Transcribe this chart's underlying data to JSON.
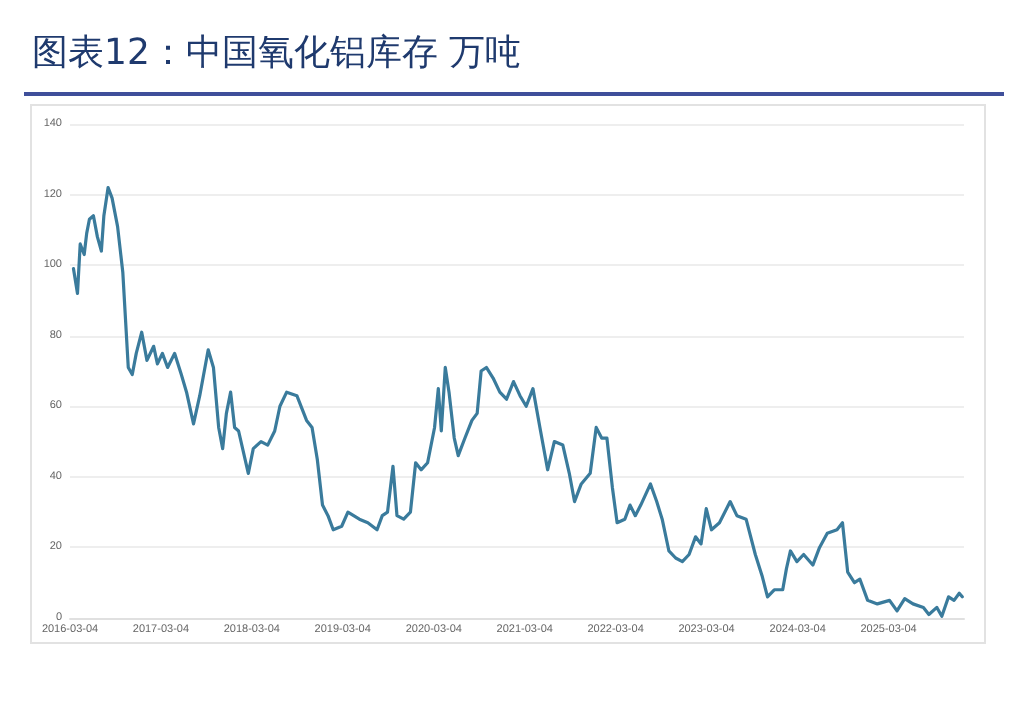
{
  "chart_data": {
    "type": "line",
    "title": "图表12：中国氧化铝库存 万吨",
    "x": [
      "2016-03-18",
      "2016-04-03",
      "2016-04-14",
      "2016-04-30",
      "2016-05-10",
      "2016-05-21",
      "2016-06-06",
      "2016-06-22",
      "2016-07-08",
      "2016-07-18",
      "2016-08-04",
      "2016-08-20",
      "2016-09-11",
      "2016-10-02",
      "2016-10-24",
      "2016-11-09",
      "2016-11-25",
      "2016-12-17",
      "2017-01-07",
      "2017-02-03",
      "2017-02-18",
      "2017-03-10",
      "2017-03-31",
      "2017-04-28",
      "2017-05-25",
      "2017-06-15",
      "2017-07-13",
      "2017-08-07",
      "2017-09-10",
      "2017-10-01",
      "2017-10-22",
      "2017-11-07",
      "2017-11-22",
      "2017-12-09",
      "2017-12-25",
      "2018-01-10",
      "2018-02-18",
      "2018-03-10",
      "2018-04-10",
      "2018-05-07",
      "2018-06-04",
      "2018-06-25",
      "2018-07-22",
      "2018-09-01",
      "2018-10-10",
      "2018-11-01",
      "2018-11-22",
      "2018-12-13",
      "2019-01-04",
      "2019-01-25",
      "2019-02-28",
      "2019-03-25",
      "2019-05-10",
      "2019-06-13",
      "2019-07-20",
      "2019-08-10",
      "2019-08-31",
      "2019-09-22",
      "2019-10-08",
      "2019-11-04",
      "2019-12-01",
      "2019-12-22",
      "2020-01-13",
      "2020-02-08",
      "2020-03-07",
      "2020-03-22",
      "2020-04-03",
      "2020-04-19",
      "2020-05-04",
      "2020-05-25",
      "2020-06-10",
      "2020-07-07",
      "2020-08-04",
      "2020-08-25",
      "2020-09-10",
      "2020-10-01",
      "2020-10-28",
      "2020-11-24",
      "2020-12-21",
      "2021-01-18",
      "2021-02-13",
      "2021-03-10",
      "2021-04-06",
      "2021-05-04",
      "2021-06-04",
      "2021-07-01",
      "2021-08-04",
      "2021-08-30",
      "2021-09-20",
      "2021-10-17",
      "2021-11-22",
      "2021-12-16",
      "2022-01-07",
      "2022-01-28",
      "2022-02-19",
      "2022-03-10",
      "2022-04-10",
      "2022-05-01",
      "2022-05-22",
      "2022-06-13",
      "2022-07-22",
      "2022-08-16",
      "2022-09-07",
      "2022-10-04",
      "2022-10-31",
      "2022-11-27",
      "2022-12-24",
      "2023-01-19",
      "2023-02-10",
      "2023-03-03",
      "2023-03-24",
      "2023-04-25",
      "2023-06-07",
      "2023-07-04",
      "2023-08-10",
      "2023-09-16",
      "2023-10-13",
      "2023-11-04",
      "2023-12-01",
      "2024-01-04",
      "2024-01-19",
      "2024-02-04",
      "2024-03-01",
      "2024-03-28",
      "2024-05-04",
      "2024-05-31",
      "2024-07-01",
      "2024-08-09",
      "2024-08-31",
      "2024-09-21",
      "2024-10-18",
      "2024-11-09",
      "2024-12-10",
      "2025-01-18",
      "2025-03-08",
      "2025-04-07",
      "2025-05-08",
      "2025-06-10",
      "2025-07-22",
      "2025-08-13",
      "2025-09-14",
      "2025-10-04",
      "2025-10-31",
      "2025-11-22",
      "2025-12-13",
      "2025-12-25"
    ],
    "series": [
      {
        "color": "#3a7b9c",
        "values": [
          99,
          92,
          106,
          103,
          109,
          113,
          114,
          108,
          104,
          114,
          122,
          119,
          111,
          98,
          71,
          69,
          75,
          81,
          73,
          77,
          72,
          75,
          71,
          75,
          69,
          64,
          55,
          63,
          76,
          71,
          54,
          48,
          58,
          64,
          54,
          53,
          41,
          48,
          50,
          49,
          53,
          60,
          64,
          63,
          56,
          54,
          45,
          32,
          29,
          25,
          26,
          30,
          28,
          27,
          25,
          29,
          30,
          43,
          29,
          28,
          30,
          44,
          42,
          44,
          54,
          65,
          53,
          71,
          64,
          51,
          46,
          51,
          56,
          58,
          70,
          71,
          68,
          64,
          62,
          67,
          63,
          60,
          65,
          54,
          42,
          50,
          49,
          41,
          33,
          38,
          41,
          54,
          51,
          51,
          37,
          27,
          28,
          32,
          29,
          32,
          38,
          33,
          28,
          19,
          17,
          16,
          18,
          23,
          21,
          31,
          25,
          27,
          33,
          29,
          28,
          18,
          12,
          6,
          8,
          8,
          14,
          19,
          16,
          18,
          15,
          20,
          24,
          25,
          27,
          13,
          10,
          11,
          5,
          4,
          5,
          2,
          5.5,
          4,
          3,
          1,
          3,
          0.5,
          6,
          5,
          7,
          6
        ]
      }
    ],
    "xlim": [
      "2016-03-04",
      "2026-01-01"
    ],
    "xticks": [
      "2016-03-04",
      "2017-03-04",
      "2018-03-04",
      "2019-03-04",
      "2020-03-04",
      "2021-03-04",
      "2022-03-04",
      "2023-03-04",
      "2024-03-04",
      "2025-03-04"
    ],
    "ylim": [
      0,
      140
    ],
    "yticks": [
      0,
      20,
      40,
      60,
      80,
      100,
      120,
      140
    ],
    "grid": "y",
    "marker": "none",
    "line_style": "solid"
  }
}
